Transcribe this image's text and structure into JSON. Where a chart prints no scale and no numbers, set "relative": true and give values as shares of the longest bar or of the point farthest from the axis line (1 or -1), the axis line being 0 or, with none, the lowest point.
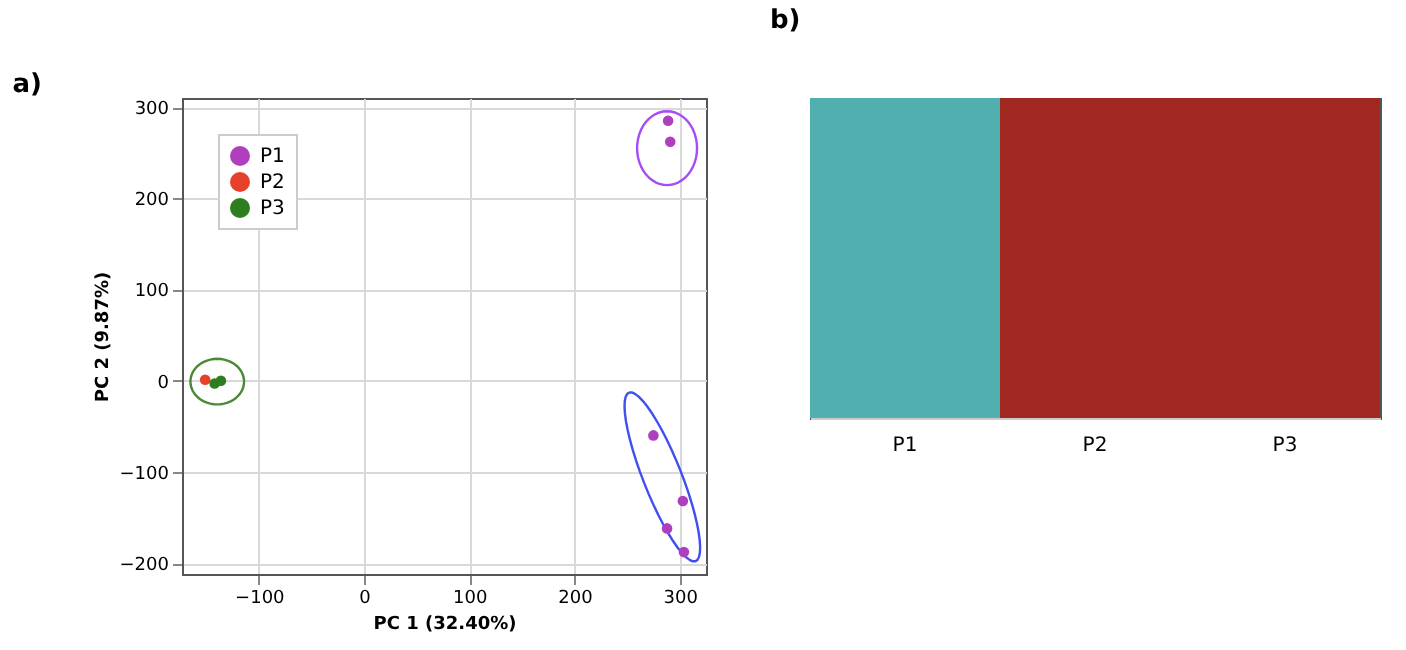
{
  "chart_data": [
    {
      "type": "scatter",
      "title": "a)",
      "xlabel": "PC 1 (32.40%)",
      "ylabel": "PC 2 (9.87%)",
      "xlim": [
        -173,
        325
      ],
      "ylim": [
        -212,
        310
      ],
      "xticks": [
        -100,
        0,
        100,
        200,
        300
      ],
      "yticks": [
        -200,
        -100,
        0,
        100,
        200,
        300
      ],
      "grid": true,
      "legend": "top left",
      "marker": "circle",
      "series": [
        {
          "name": "P1",
          "color": "#b03fc0",
          "x": [
            289,
            291,
            275,
            303,
            288,
            304
          ],
          "values": [
            285,
            262,
            -60,
            -132,
            -162,
            -188
          ]
        },
        {
          "name": "P2",
          "color": "#e8412a",
          "x": [
            -151
          ],
          "values": [
            1
          ]
        },
        {
          "name": "P3",
          "color": "#2e7d1e",
          "x": [
            -142,
            -136
          ],
          "values": [
            -3,
            0
          ]
        }
      ]
    },
    {
      "type": "bar",
      "title": "b)",
      "relative": true,
      "categories": [
        "P1",
        "P2",
        "P3"
      ],
      "values": [
        1,
        1,
        1
      ],
      "colors": [
        "#52afb0",
        "#a12721",
        "#a12721"
      ]
    }
  ]
}
